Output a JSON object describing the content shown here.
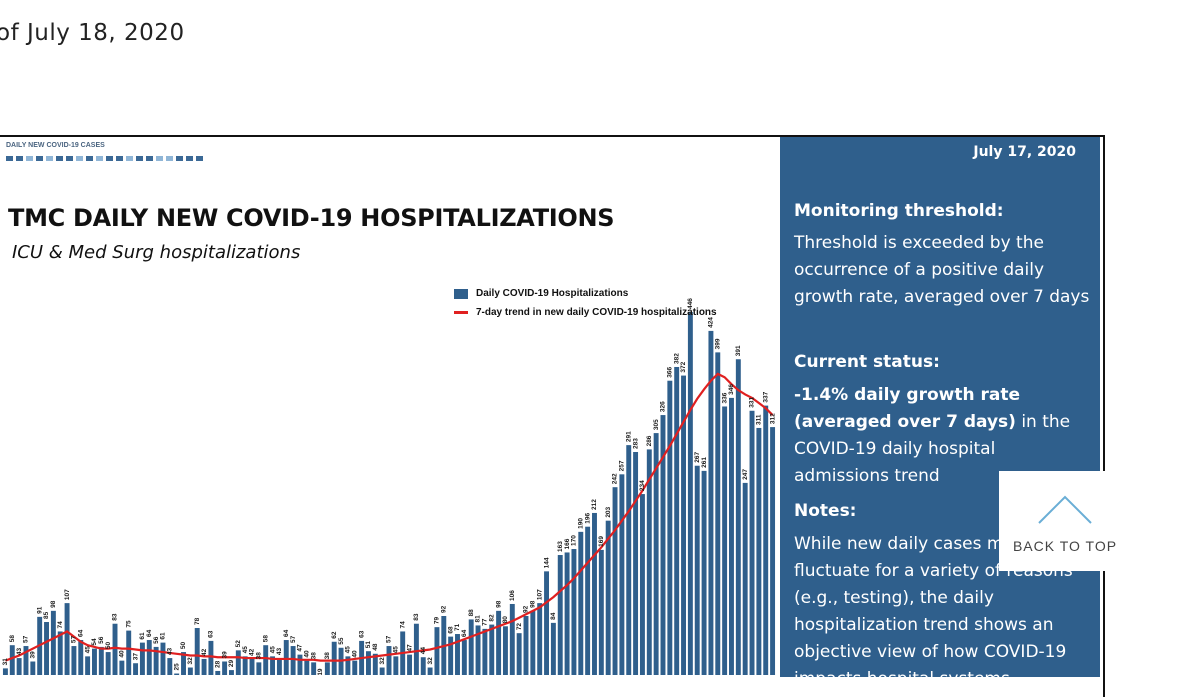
{
  "page": {
    "date_text": "of July 18, 2020"
  },
  "header_strip": {
    "section_tag": "DAILY NEW COVID-19 CASES"
  },
  "chart_data": {
    "type": "bar",
    "title": "TMC DAILY NEW COVID-19 HOSPITALIZATIONS",
    "subtitle": "ICU & Med Surg hospitalizations",
    "xlabel": "",
    "ylabel": "",
    "ylim": [
      0,
      460
    ],
    "grid": false,
    "legend_placement": "top-center",
    "colors": {
      "bars": "#2f5f8c",
      "trend": "#e02020"
    },
    "series": [
      {
        "name": "Daily COVID-19 Hospitalizations",
        "type": "bar",
        "values": [
          31,
          58,
          43,
          57,
          39,
          91,
          85,
          98,
          74,
          107,
          57,
          64,
          45,
          54,
          56,
          50,
          83,
          40,
          75,
          37,
          61,
          64,
          56,
          61,
          43,
          25,
          50,
          32,
          78,
          42,
          63,
          28,
          39,
          29,
          52,
          45,
          42,
          38,
          58,
          45,
          43,
          64,
          57,
          47,
          40,
          38,
          19,
          38,
          62,
          55,
          45,
          40,
          63,
          51,
          48,
          32,
          57,
          45,
          74,
          47,
          83,
          44,
          32,
          79,
          92,
          68,
          71,
          64,
          88,
          81,
          77,
          82,
          98,
          80,
          106,
          72,
          92,
          98,
          107,
          144,
          84,
          163,
          166,
          170,
          190,
          196,
          212,
          169,
          203,
          242,
          257,
          291,
          283,
          234,
          286,
          305,
          326,
          366,
          382,
          372,
          446,
          267,
          261,
          424,
          399,
          336,
          346,
          391,
          247,
          331,
          311,
          337,
          312
        ]
      },
      {
        "name": "7-day trend in new daily COVID-19 hospitalizations",
        "type": "line",
        "values": [
          40,
          43,
          46,
          50,
          54,
          58,
          62,
          66,
          70,
          74,
          68,
          62,
          58,
          56,
          54,
          54,
          55,
          54,
          54,
          53,
          52,
          52,
          51,
          50,
          49,
          48,
          47,
          46,
          46,
          45,
          45,
          44,
          44,
          44,
          44,
          43,
          43,
          43,
          43,
          42,
          42,
          42,
          42,
          41,
          41,
          41,
          40,
          40,
          40,
          40,
          41,
          42,
          43,
          44,
          45,
          46,
          47,
          48,
          49,
          50,
          51,
          52,
          53,
          55,
          57,
          59,
          62,
          65,
          68,
          71,
          74,
          77,
          80,
          83,
          86,
          90,
          94,
          98,
          102,
          108,
          114,
          121,
          128,
          136,
          145,
          154,
          163,
          172,
          182,
          192,
          203,
          214,
          226,
          238,
          251,
          264,
          277,
          290,
          304,
          318,
          332,
          345,
          356,
          366,
          374,
          370,
          362,
          355,
          350,
          346,
          340,
          334,
          326
        ]
      }
    ],
    "data_labels": [
      31,
      58,
      43,
      57,
      39,
      91,
      85,
      98,
      74,
      107,
      57,
      64,
      45,
      54,
      56,
      50,
      83,
      40,
      75,
      37,
      61,
      64,
      56,
      61,
      43,
      25,
      50,
      32,
      78,
      42,
      63,
      28,
      39,
      29,
      52,
      45,
      42,
      38,
      58,
      45,
      43,
      64,
      57,
      47,
      40,
      38,
      19,
      38,
      62,
      55,
      45,
      40,
      63,
      51,
      48,
      32,
      57,
      45,
      74,
      47,
      83,
      44,
      32,
      79,
      92,
      68,
      71,
      64,
      88,
      81,
      77,
      82,
      98,
      80,
      106,
      72,
      92,
      98,
      107,
      144,
      84,
      163,
      166,
      170,
      190,
      196,
      212,
      169,
      203,
      242,
      257,
      291,
      283,
      234,
      286,
      305,
      326,
      366,
      382,
      372,
      446,
      267,
      261,
      424,
      399,
      336,
      346,
      391,
      247,
      331,
      311,
      337,
      312
    ]
  },
  "panel": {
    "date": "July 17, 2020",
    "threshold_heading": "Monitoring threshold:",
    "threshold_text": "Threshold is exceeded by the occurrence of a positive daily growth rate, averaged over 7 days",
    "status_heading": "Current status:",
    "status_bold": "-1.4% daily growth rate (averaged over 7 days)",
    "status_text": " in the COVID-19 daily hospital admissions trend",
    "notes_heading": "Notes:",
    "notes_text": "While new daily cases may fluctuate for a variety of reasons (e.g., testing), the daily hospitalization trend shows an objective view of how COVID-19 impacts hospital systems."
  },
  "back_to_top": {
    "label": "BACK TO TOP",
    "icon": "chevron-up-icon"
  }
}
